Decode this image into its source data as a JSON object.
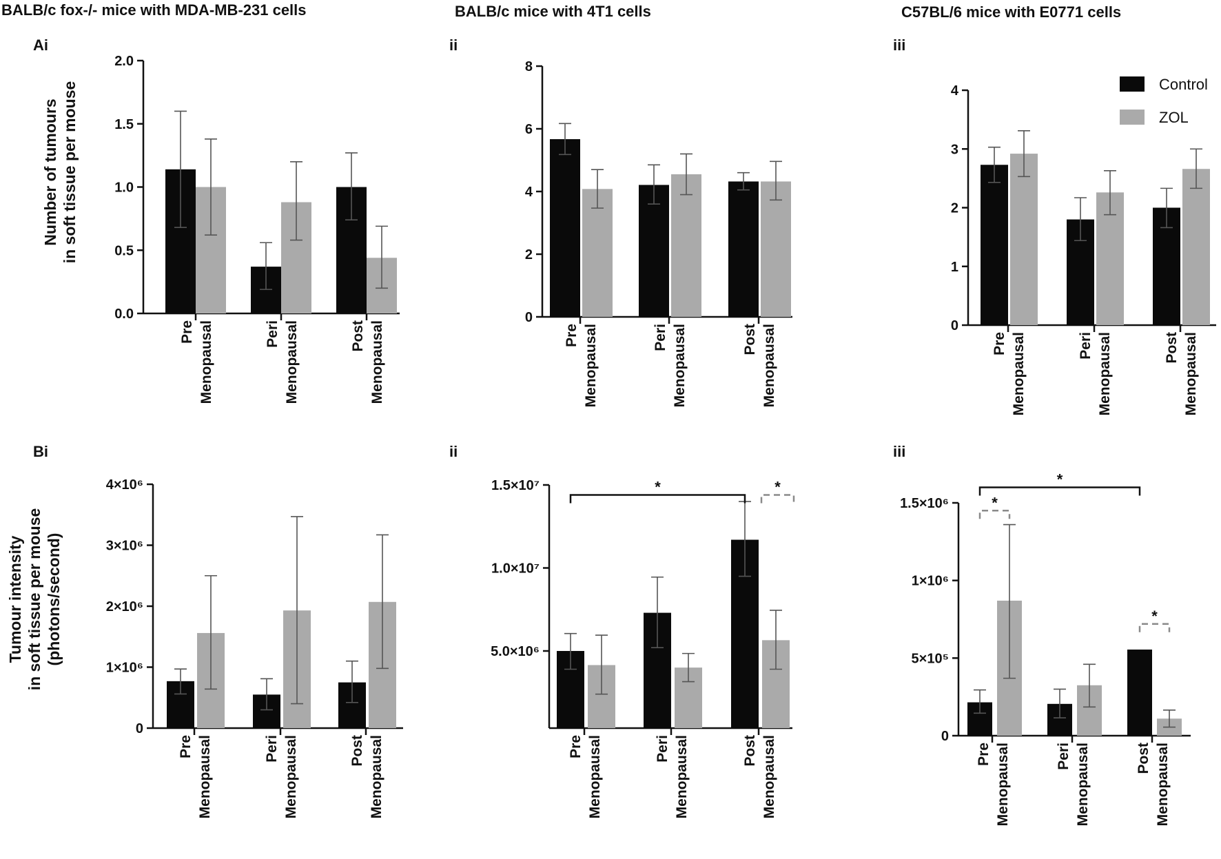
{
  "column_titles": [
    "BALB/c fox-/- mice with MDA-MB-231 cells",
    "BALB/c mice with 4T1 cells",
    "C57BL/6 mice with E0771 cells"
  ],
  "legend": {
    "items": [
      {
        "label": "Control",
        "color": "#0a0a0a"
      },
      {
        "label": "ZOL",
        "color": "#aaaaaa"
      }
    ]
  },
  "colors": {
    "control": "#0a0a0a",
    "zol": "#aaaaaa",
    "axis": "#111111"
  },
  "chart_data": [
    {
      "id": "Ai",
      "panel_label": "Ai",
      "type": "bar",
      "ylabel_lines": [
        "Number of tumours",
        "in soft tissue per mouse"
      ],
      "ylim": [
        0,
        2.0
      ],
      "yticks": [
        {
          "v": 0,
          "t": "0.0"
        },
        {
          "v": 0.5,
          "t": "0.5"
        },
        {
          "v": 1.0,
          "t": "1.0"
        },
        {
          "v": 1.5,
          "t": "1.5"
        },
        {
          "v": 2.0,
          "t": "2.0"
        }
      ],
      "categories": [
        [
          "Pre",
          "Menopausal"
        ],
        [
          "Peri",
          "Menopausal"
        ],
        [
          "Post",
          "Menopausal"
        ]
      ],
      "series": [
        {
          "name": "Control",
          "values": [
            1.14,
            0.37,
            1.0
          ],
          "err_low": [
            0.68,
            0.19,
            0.74
          ],
          "err_high": [
            1.6,
            0.56,
            1.27
          ]
        },
        {
          "name": "ZOL",
          "values": [
            1.0,
            0.88,
            0.44
          ],
          "err_low": [
            0.62,
            0.58,
            0.2
          ],
          "err_high": [
            1.38,
            1.2,
            0.69
          ]
        }
      ],
      "annotations": []
    },
    {
      "id": "Aii",
      "panel_label": "ii",
      "type": "bar",
      "ylabel_lines": [],
      "ylim": [
        0,
        8
      ],
      "yticks": [
        {
          "v": 0,
          "t": "0"
        },
        {
          "v": 2,
          "t": "2"
        },
        {
          "v": 4,
          "t": "4"
        },
        {
          "v": 6,
          "t": "6"
        },
        {
          "v": 8,
          "t": "8"
        }
      ],
      "categories": [
        [
          "Pre",
          "Menopausal"
        ],
        [
          "Peri",
          "Menopausal"
        ],
        [
          "Post",
          "Menopausal"
        ]
      ],
      "series": [
        {
          "name": "Control",
          "values": [
            5.67,
            4.21,
            4.32
          ],
          "err_low": [
            5.18,
            3.6,
            4.05
          ],
          "err_high": [
            6.17,
            4.85,
            4.6
          ]
        },
        {
          "name": "ZOL",
          "values": [
            4.08,
            4.55,
            4.32
          ],
          "err_low": [
            3.47,
            3.9,
            3.73
          ],
          "err_high": [
            4.7,
            5.2,
            4.96
          ]
        }
      ],
      "annotations": []
    },
    {
      "id": "Aiii",
      "panel_label": "iii",
      "type": "bar",
      "ylabel_lines": [],
      "ylim": [
        0,
        4
      ],
      "yticks": [
        {
          "v": 0,
          "t": "0"
        },
        {
          "v": 1,
          "t": "1"
        },
        {
          "v": 2,
          "t": "2"
        },
        {
          "v": 3,
          "t": "3"
        },
        {
          "v": 4,
          "t": "4"
        }
      ],
      "categories": [
        [
          "Pre",
          "Menopausal"
        ],
        [
          "Peri",
          "Menopausal"
        ],
        [
          "Post",
          "Menopausal"
        ]
      ],
      "series": [
        {
          "name": "Control",
          "values": [
            2.73,
            1.8,
            2.0
          ],
          "err_low": [
            2.43,
            1.44,
            1.66
          ],
          "err_high": [
            3.03,
            2.17,
            2.33
          ]
        },
        {
          "name": "ZOL",
          "values": [
            2.92,
            2.26,
            2.66
          ],
          "err_low": [
            2.53,
            1.88,
            2.33
          ],
          "err_high": [
            3.31,
            2.63,
            3.0
          ]
        }
      ],
      "annotations": []
    },
    {
      "id": "Bi",
      "panel_label": "Bi",
      "type": "bar",
      "ylabel_lines": [
        "Tumour intensity",
        "in soft tissue per mouse",
        "(photons/second)"
      ],
      "ylim": [
        0,
        4000000
      ],
      "yticks": [
        {
          "v": 0,
          "t": "0"
        },
        {
          "v": 1000000,
          "t": "1×10⁶"
        },
        {
          "v": 2000000,
          "t": "2×10⁶"
        },
        {
          "v": 3000000,
          "t": "3×10⁶"
        },
        {
          "v": 4000000,
          "t": "4×10⁶"
        }
      ],
      "categories": [
        [
          "Pre",
          "Menopausal"
        ],
        [
          "Peri",
          "Menopausal"
        ],
        [
          "Post",
          "Menopausal"
        ]
      ],
      "series": [
        {
          "name": "Control",
          "values": [
            770000,
            550000,
            750000
          ],
          "err_low": [
            560000,
            300000,
            420000
          ],
          "err_high": [
            970000,
            810000,
            1100000
          ]
        },
        {
          "name": "ZOL",
          "values": [
            1560000,
            1930000,
            2070000
          ],
          "err_low": [
            640000,
            400000,
            980000
          ],
          "err_high": [
            2500000,
            3470000,
            3170000
          ]
        }
      ],
      "annotations": []
    },
    {
      "id": "Bii",
      "panel_label": "ii",
      "type": "bar",
      "ylabel_lines": [],
      "ylim": [
        0,
        15000000
      ],
      "yticks": [
        {
          "v": 5000000,
          "t": "5.0×10⁶"
        },
        {
          "v": 10000000,
          "t": "1.0×10⁷"
        },
        {
          "v": 15000000,
          "t": "1.5×10⁷"
        }
      ],
      "categories": [
        [
          "Pre",
          "Menopausal"
        ],
        [
          "Peri",
          "Menopausal"
        ],
        [
          "Post",
          "Menopausal"
        ]
      ],
      "series": [
        {
          "name": "Control",
          "values": [
            5000000,
            7300000,
            11700000
          ],
          "err_low": [
            3900000,
            5200000,
            9500000
          ],
          "err_high": [
            6050000,
            9450000,
            14000000
          ]
        },
        {
          "name": "ZOL",
          "values": [
            4150000,
            4000000,
            5650000
          ],
          "err_low": [
            2400000,
            3150000,
            3900000
          ],
          "err_high": [
            5950000,
            4850000,
            7450000
          ]
        }
      ],
      "annotations": [
        {
          "from": [
            0,
            0
          ],
          "to": [
            2,
            0
          ],
          "level": 14400000,
          "style": "solid",
          "label": "*"
        },
        {
          "from": [
            2,
            1
          ],
          "to": [
            2,
            1
          ],
          "level": 14400000,
          "style": "dashed",
          "label": "*"
        }
      ]
    },
    {
      "id": "Biii",
      "panel_label": "iii",
      "type": "bar",
      "ylabel_lines": [],
      "ylim": [
        0,
        1500000
      ],
      "yticks": [
        {
          "v": 0,
          "t": "0"
        },
        {
          "v": 500000,
          "t": "5×10⁵"
        },
        {
          "v": 1000000,
          "t": "1×10⁶"
        },
        {
          "v": 1500000,
          "t": "1.5×10⁶"
        }
      ],
      "categories": [
        [
          "Pre",
          "Menopausal"
        ],
        [
          "Peri",
          "Menopausal"
        ],
        [
          "Post",
          "Menopausal"
        ]
      ],
      "series": [
        {
          "name": "Control",
          "values": [
            215000,
            205000,
            555000
          ],
          "err_low": [
            145000,
            115000,
            555000
          ],
          "err_high": [
            295000,
            300000,
            555000
          ]
        },
        {
          "name": "ZOL",
          "values": [
            870000,
            325000,
            110000
          ],
          "err_low": [
            370000,
            185000,
            55000
          ],
          "err_high": [
            1360000,
            460000,
            165000
          ]
        }
      ],
      "annotations": [
        {
          "from": [
            0,
            0
          ],
          "to": [
            0,
            1
          ],
          "level": 1450000,
          "style": "dashed",
          "label": "*"
        },
        {
          "from": [
            0,
            0
          ],
          "to": [
            2,
            0
          ],
          "level": 1600000,
          "style": "solid",
          "label": "*"
        },
        {
          "from": [
            2,
            0
          ],
          "to": [
            2,
            1
          ],
          "level": 720000,
          "style": "dashed",
          "label": "*"
        }
      ]
    }
  ]
}
